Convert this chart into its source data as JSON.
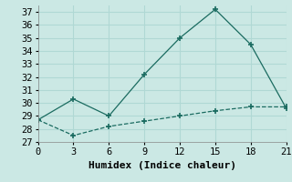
{
  "xlabel": "Humidex (Indice chaleur)",
  "background_color": "#cbe8e4",
  "grid_color": "#b0d8d4",
  "line_color": "#1a6b60",
  "x_line1": [
    0,
    3,
    6,
    9,
    12,
    15,
    18,
    21
  ],
  "y_line1": [
    28.7,
    30.3,
    29.0,
    32.2,
    35.0,
    37.2,
    34.5,
    29.6
  ],
  "x_line2": [
    0,
    3,
    6,
    9,
    12,
    15,
    18,
    21
  ],
  "y_line2": [
    28.7,
    27.5,
    28.2,
    28.6,
    29.0,
    29.4,
    29.7,
    29.7
  ],
  "xlim": [
    0,
    21
  ],
  "ylim": [
    27,
    37.5
  ],
  "xticks": [
    0,
    3,
    6,
    9,
    12,
    15,
    18,
    21
  ],
  "yticks": [
    27,
    28,
    29,
    30,
    31,
    32,
    33,
    34,
    35,
    36,
    37
  ],
  "font_family": "monospace",
  "xlabel_fontsize": 8,
  "tick_fontsize": 7.5
}
